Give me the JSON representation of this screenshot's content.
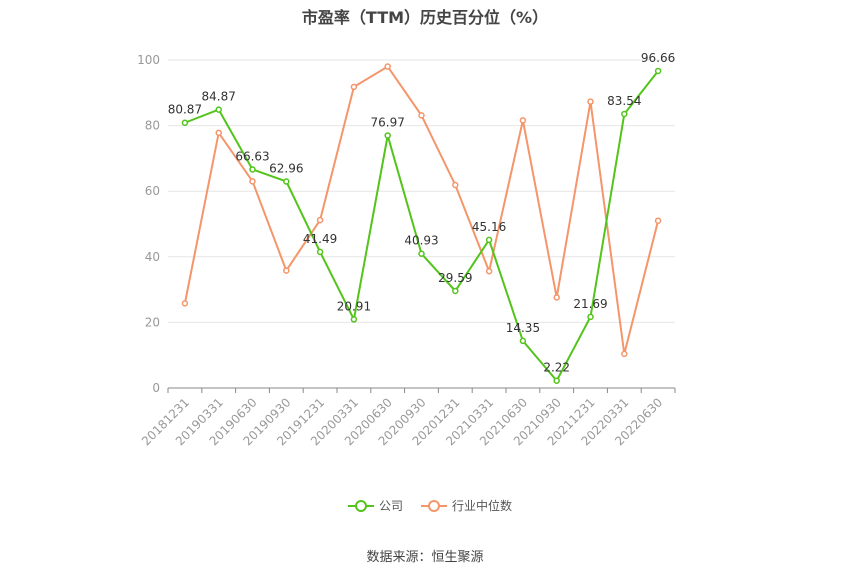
{
  "chart_data": {
    "type": "line",
    "title": "市盈率（TTM）历史百分位（%）",
    "categories": [
      "20181231",
      "20190331",
      "20190630",
      "20190930",
      "20191231",
      "20200331",
      "20200630",
      "20200930",
      "20201231",
      "20210331",
      "20210630",
      "20210930",
      "20211231",
      "20220331",
      "20220630"
    ],
    "series": [
      {
        "name": "公司",
        "color": "#52c41a",
        "values": [
          80.87,
          84.87,
          66.63,
          62.96,
          41.49,
          20.91,
          76.97,
          40.93,
          29.59,
          45.16,
          14.35,
          2.22,
          21.69,
          83.54,
          96.66
        ],
        "show_labels": true
      },
      {
        "name": "行业中位数",
        "color": "#f4956a",
        "values": [
          25.8,
          77.8,
          63.0,
          35.8,
          51.2,
          91.8,
          98.0,
          83.1,
          61.9,
          35.6,
          81.6,
          27.6,
          87.3,
          10.4,
          51.0
        ],
        "show_labels": false
      }
    ],
    "ylim": [
      0,
      100
    ],
    "yticks": [
      0,
      20,
      40,
      60,
      80,
      100
    ],
    "grid": true,
    "legend": "bottom"
  },
  "source": "数据来源：恒生聚源"
}
